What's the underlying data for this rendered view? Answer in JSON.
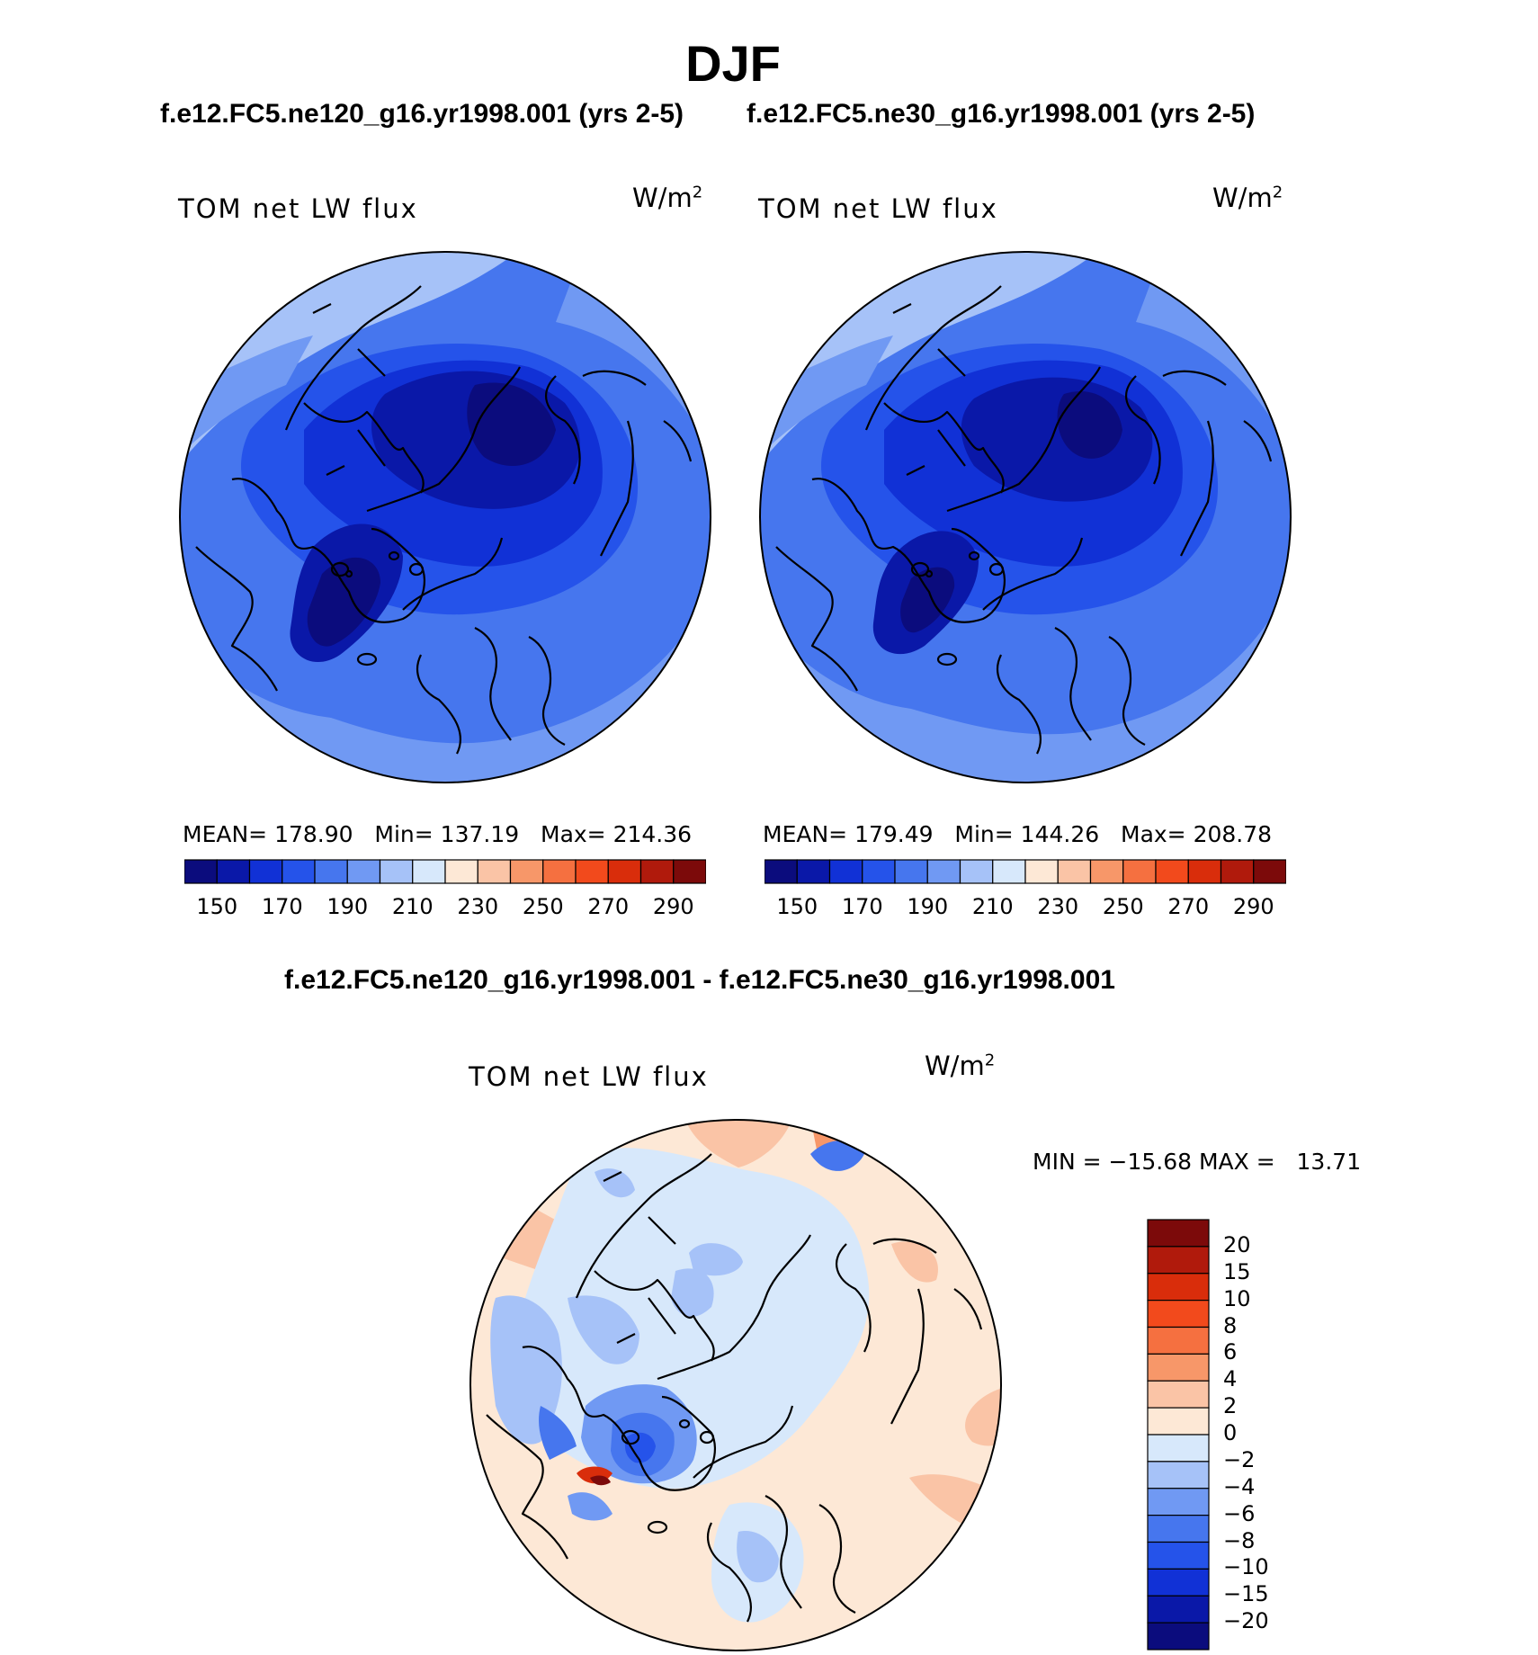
{
  "title": "DJF",
  "case1": "f.e12.FC5.ne120_g16.yr1998.001 (yrs 2-5)",
  "case2": "f.e12.FC5.ne30_g16.yr1998.001 (yrs 2-5)",
  "diff_title": "f.e12.FC5.ne120_g16.yr1998.001 - f.e12.FC5.ne30_g16.yr1998.001",
  "variable": "TOM net LW flux",
  "units_base": "W/m",
  "units_exp": "2",
  "panels": [
    {
      "mean_label": "MEAN=",
      "mean": "178.90",
      "min_label": "Min=",
      "min": "137.19",
      "max_label": "Max=",
      "max": "214.36"
    },
    {
      "mean_label": "MEAN=",
      "mean": "179.49",
      "min_label": "Min=",
      "min": "144.26",
      "max_label": "Max=",
      "max": "208.78"
    }
  ],
  "diff_stats": {
    "min_label": "MIN =",
    "min": "−15.68",
    "max_label": "MAX =",
    "max": "13.71"
  },
  "colorbar_top": {
    "labels": [
      "150",
      "170",
      "190",
      "210",
      "230",
      "250",
      "270",
      "290"
    ],
    "colors": [
      "#0b0c7d",
      "#0a18a8",
      "#1131d6",
      "#2553ea",
      "#4676ee",
      "#7099f3",
      "#a6c2f8",
      "#d7e8fb",
      "#fde8d6",
      "#fac4a6",
      "#f79769",
      "#f57040",
      "#f24a1c",
      "#d92d0b",
      "#b01a0c",
      "#7c0a0a"
    ]
  },
  "colorbar_diff": {
    "labels": [
      "20",
      "15",
      "10",
      "8",
      "6",
      "4",
      "2",
      "0",
      "−2",
      "−4",
      "−6",
      "−8",
      "−10",
      "−15",
      "−20"
    ],
    "colors": [
      "#7c0a0a",
      "#b01a0c",
      "#d92d0b",
      "#f24a1c",
      "#f57040",
      "#f79769",
      "#fac4a6",
      "#fde8d6",
      "#d7e8fb",
      "#a6c2f8",
      "#7099f3",
      "#4676ee",
      "#2553ea",
      "#1131d6",
      "#0a18a8",
      "#0b0c7d"
    ]
  }
}
